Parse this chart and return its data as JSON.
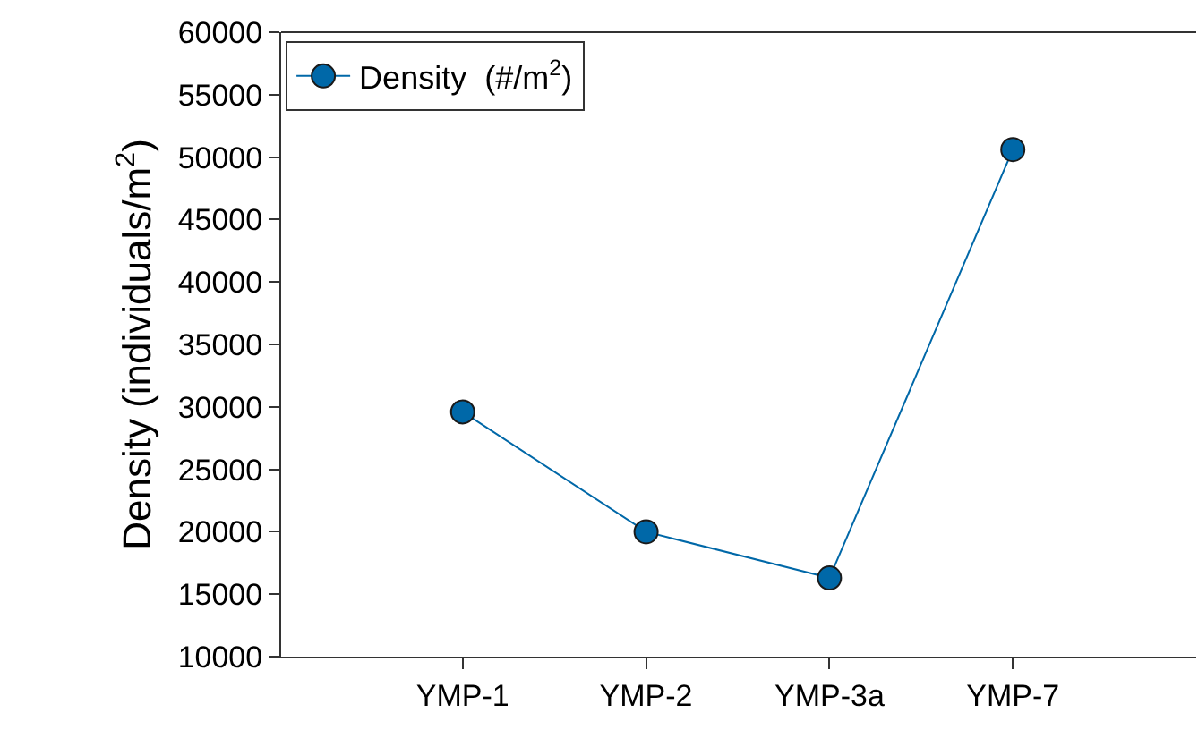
{
  "chart_data": {
    "type": "line",
    "ylabel": "Density (individuals/m$^{2}$)",
    "categories": [
      "YMP-1",
      "YMP-2",
      "YMP-3a",
      "YMP-7"
    ],
    "series": [
      {
        "name": "Density  (#/m$^{2}$)",
        "color": "#0068a8",
        "values": [
          29600,
          20000,
          16300,
          50600
        ]
      }
    ],
    "ylim": [
      10000,
      60000
    ],
    "yticks": [
      10000,
      15000,
      20000,
      25000,
      30000,
      35000,
      40000,
      45000,
      50000,
      55000,
      60000
    ],
    "marker": "circle",
    "line_style": "solid",
    "legend": "top left"
  }
}
